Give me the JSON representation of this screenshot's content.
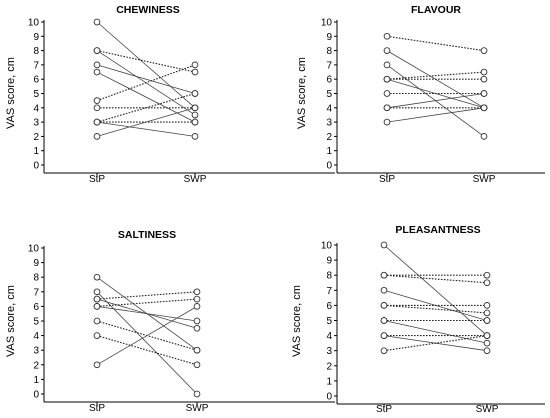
{
  "chart_data": [
    {
      "type": "line",
      "title": "CHEWINESS",
      "ylabel": "VAS score, cm",
      "categories": [
        "StP",
        "SWP"
      ],
      "ylim": [
        0,
        10
      ],
      "yticks": [
        "0",
        "1",
        "2",
        "3",
        "4",
        "5",
        "6",
        "7",
        "8",
        "9",
        "10"
      ],
      "marker": "open-circle",
      "series": [
        {
          "values": [
            10,
            4
          ],
          "style": "solid"
        },
        {
          "values": [
            8,
            3.5
          ],
          "style": "solid"
        },
        {
          "values": [
            8,
            6.5
          ],
          "style": "dotted"
        },
        {
          "values": [
            7,
            5
          ],
          "style": "solid"
        },
        {
          "values": [
            6.5,
            3
          ],
          "style": "solid"
        },
        {
          "values": [
            4.5,
            7
          ],
          "style": "dotted"
        },
        {
          "values": [
            4,
            4
          ],
          "style": "dotted"
        },
        {
          "values": [
            3,
            5
          ],
          "style": "dotted"
        },
        {
          "values": [
            3,
            3
          ],
          "style": "dotted"
        },
        {
          "values": [
            3,
            2
          ],
          "style": "solid"
        },
        {
          "values": [
            2,
            4
          ],
          "style": "solid"
        }
      ]
    },
    {
      "type": "line",
      "title": "FLAVOUR",
      "ylabel": "VAS score, cm",
      "categories": [
        "StP",
        "SWP"
      ],
      "ylim": [
        0,
        10
      ],
      "yticks": [
        "0",
        "1",
        "2",
        "3",
        "4",
        "5",
        "6",
        "7",
        "8",
        "9",
        "10"
      ],
      "marker": "open-circle",
      "series": [
        {
          "values": [
            9,
            8
          ],
          "style": "dotted"
        },
        {
          "values": [
            8,
            4
          ],
          "style": "solid"
        },
        {
          "values": [
            7,
            2
          ],
          "style": "solid"
        },
        {
          "values": [
            6,
            6.5
          ],
          "style": "dotted"
        },
        {
          "values": [
            6,
            6
          ],
          "style": "dotted"
        },
        {
          "values": [
            6,
            4
          ],
          "style": "solid"
        },
        {
          "values": [
            5,
            5
          ],
          "style": "dotted"
        },
        {
          "values": [
            4,
            4
          ],
          "style": "dotted"
        },
        {
          "values": [
            4,
            5
          ],
          "style": "solid"
        },
        {
          "values": [
            3,
            4
          ],
          "style": "solid"
        }
      ]
    },
    {
      "type": "line",
      "title": "SALTINESS",
      "ylabel": "VAS score, cm",
      "categories": [
        "StP",
        "SWP"
      ],
      "ylim": [
        0,
        10
      ],
      "yticks": [
        "0",
        "1",
        "2",
        "3",
        "4",
        "5",
        "6",
        "7",
        "8",
        "9",
        "10"
      ],
      "marker": "open-circle",
      "series": [
        {
          "values": [
            8,
            3
          ],
          "style": "solid"
        },
        {
          "values": [
            7,
            0
          ],
          "style": "solid"
        },
        {
          "values": [
            6.5,
            7
          ],
          "style": "dotted"
        },
        {
          "values": [
            6.5,
            4.5
          ],
          "style": "solid"
        },
        {
          "values": [
            6,
            6.5
          ],
          "style": "dotted"
        },
        {
          "values": [
            6,
            5
          ],
          "style": "solid"
        },
        {
          "values": [
            5,
            3
          ],
          "style": "dotted"
        },
        {
          "values": [
            4,
            2
          ],
          "style": "dotted"
        },
        {
          "values": [
            2,
            6
          ],
          "style": "solid"
        }
      ]
    },
    {
      "type": "line",
      "title": "PLEASANTNESS",
      "ylabel": "VAS score, cm",
      "categories": [
        "StP",
        "SWP"
      ],
      "ylim": [
        0,
        10
      ],
      "yticks": [
        "0",
        "1",
        "2",
        "3",
        "4",
        "5",
        "6",
        "7",
        "8",
        "9",
        "10"
      ],
      "marker": "open-circle",
      "series": [
        {
          "values": [
            10,
            4
          ],
          "style": "solid"
        },
        {
          "values": [
            8,
            8
          ],
          "style": "dotted"
        },
        {
          "values": [
            8,
            7.5
          ],
          "style": "dotted"
        },
        {
          "values": [
            7,
            5
          ],
          "style": "solid"
        },
        {
          "values": [
            6,
            6
          ],
          "style": "dotted"
        },
        {
          "values": [
            6,
            5.5
          ],
          "style": "dotted"
        },
        {
          "values": [
            5,
            5
          ],
          "style": "dotted"
        },
        {
          "values": [
            5,
            3.5
          ],
          "style": "solid"
        },
        {
          "values": [
            4,
            4
          ],
          "style": "dotted"
        },
        {
          "values": [
            4,
            3
          ],
          "style": "solid"
        },
        {
          "values": [
            3,
            4
          ],
          "style": "dotted"
        }
      ]
    }
  ]
}
